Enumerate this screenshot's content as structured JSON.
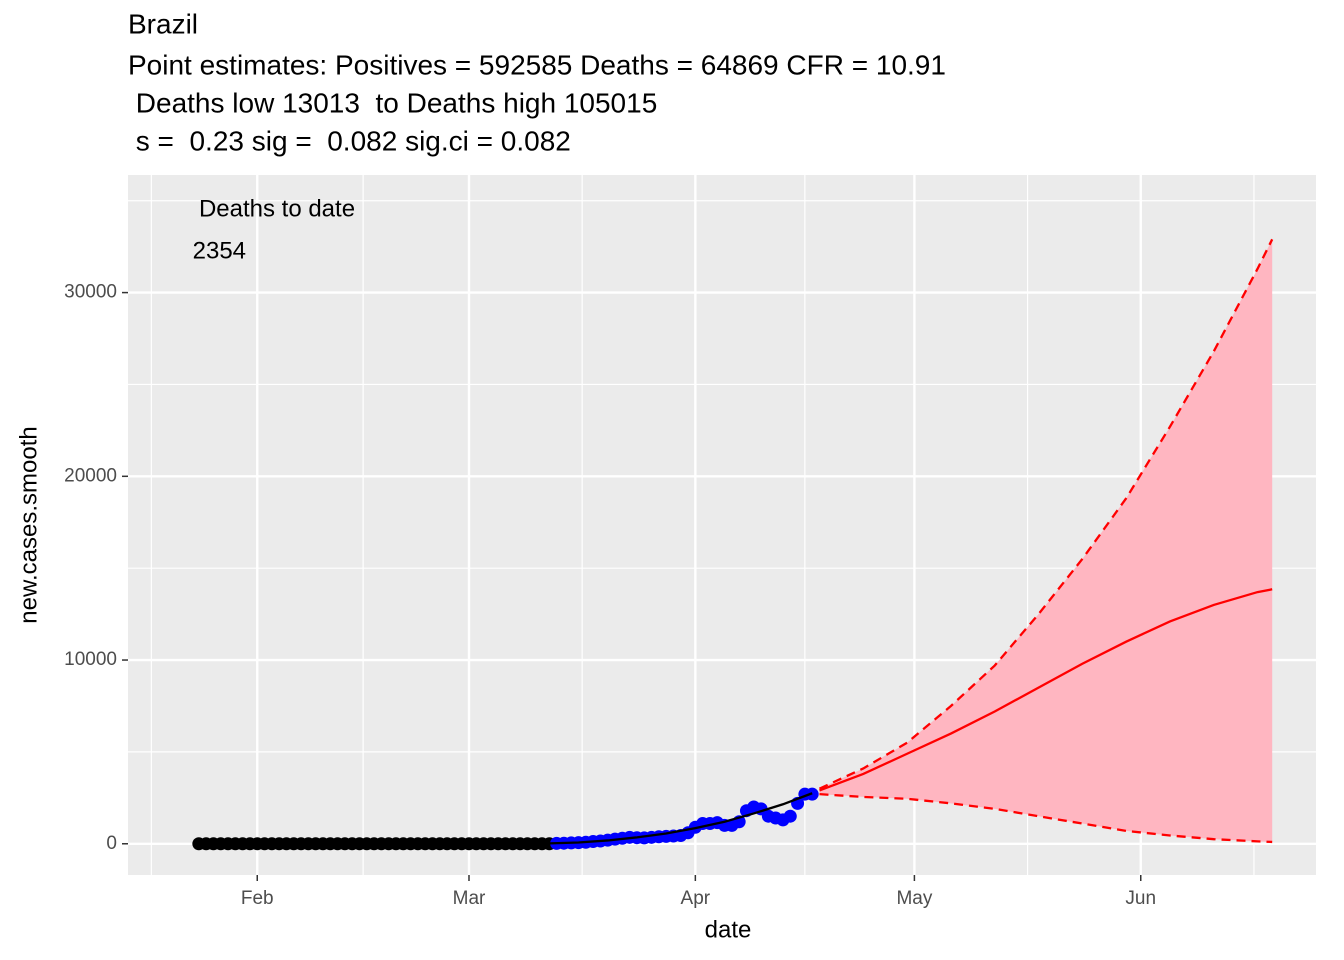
{
  "chart_data": {
    "type": "line",
    "title": "Brazil",
    "subtitle_lines": [
      "Point estimates: Positives = 592585 Deaths = 64869 CFR = 10.91",
      " Deaths low 13013  to Deaths high 105015",
      " s =  0.23 sig =  0.082 sig.ci = 0.082"
    ],
    "annotations": [
      "Deaths to date",
      " 2354"
    ],
    "xlabel": "date",
    "ylabel": "new.cases.smooth",
    "xlim": [
      14.3,
      177
    ],
    "xticks": [
      {
        "value": 32,
        "label": "Feb"
      },
      {
        "value": 61,
        "label": "Mar"
      },
      {
        "value": 92,
        "label": "Apr"
      },
      {
        "value": 122,
        "label": "May"
      },
      {
        "value": 153,
        "label": "Jun"
      }
    ],
    "ylim": [
      -1700,
      36400
    ],
    "yticks": [
      0,
      10000,
      20000,
      30000
    ],
    "grid": true,
    "panel_color": "#EBEBEB",
    "ribbon_color": "#FFB6C1",
    "series": [
      {
        "style": "points",
        "color": "#000000",
        "x": [
          24,
          25,
          26,
          27,
          28,
          29,
          30,
          31,
          32,
          33,
          34,
          35,
          36,
          37,
          38,
          39,
          40,
          41,
          42,
          43,
          44,
          45,
          46,
          47,
          48,
          49,
          50,
          51,
          52,
          53,
          54,
          55,
          56,
          57,
          58,
          59,
          60,
          61,
          62,
          63,
          64,
          65,
          66,
          67,
          68,
          69,
          70,
          71,
          72
        ],
        "values": [
          0,
          0,
          0,
          0,
          0,
          0,
          0,
          0,
          0,
          0,
          0,
          0,
          0,
          0,
          0,
          0,
          0,
          0,
          0,
          0,
          0,
          0,
          0,
          0,
          0,
          0,
          0,
          0,
          0,
          0,
          0,
          0,
          0,
          0,
          0,
          0,
          0,
          0,
          0,
          0,
          0,
          0,
          0,
          0,
          0,
          0,
          0,
          0,
          0
        ]
      },
      {
        "style": "points",
        "color": "#0000FF",
        "x": [
          73,
          74,
          75,
          76,
          77,
          78,
          79,
          80,
          81,
          82,
          83,
          84,
          85,
          86,
          87,
          88,
          89,
          90,
          91,
          92,
          93,
          94,
          95,
          96,
          97,
          98,
          99,
          100,
          101,
          102,
          103,
          104,
          105,
          106,
          107,
          108
        ],
        "values": [
          20,
          30,
          50,
          60,
          80,
          120,
          150,
          200,
          250,
          300,
          350,
          330,
          320,
          350,
          380,
          400,
          420,
          450,
          600,
          900,
          1100,
          1100,
          1150,
          1000,
          1000,
          1200,
          1800,
          2000,
          1900,
          1500,
          1400,
          1300,
          1500,
          2200,
          2700,
          2700
        ]
      },
      {
        "style": "line",
        "color": "#000000",
        "x": [
          72,
          76,
          80,
          84,
          88,
          92,
          96,
          100,
          104,
          108
        ],
        "values": [
          20,
          70,
          180,
          350,
          560,
          850,
          1200,
          1650,
          2150,
          2750
        ]
      },
      {
        "style": "line",
        "color": "#FF0000",
        "x": [
          109,
          115,
          121,
          127,
          133,
          139,
          145,
          151,
          157,
          163,
          169,
          171
        ],
        "values": [
          2900,
          3800,
          4900,
          6000,
          7200,
          8500,
          9800,
          11000,
          12100,
          13000,
          13700,
          13850
        ]
      },
      {
        "style": "dashed",
        "color": "#FF0000",
        "x": [
          109,
          115,
          121,
          127,
          133,
          139,
          145,
          151,
          157,
          163,
          169,
          171
        ],
        "values": [
          3000,
          4100,
          5500,
          7500,
          9700,
          12500,
          15500,
          18800,
          22700,
          26800,
          31300,
          32900
        ]
      },
      {
        "style": "dashed",
        "color": "#FF0000",
        "x": [
          109,
          115,
          121,
          127,
          133,
          139,
          145,
          151,
          157,
          163,
          169,
          171
        ],
        "values": [
          2700,
          2550,
          2450,
          2200,
          1900,
          1500,
          1100,
          700,
          450,
          250,
          130,
          100
        ]
      }
    ]
  }
}
